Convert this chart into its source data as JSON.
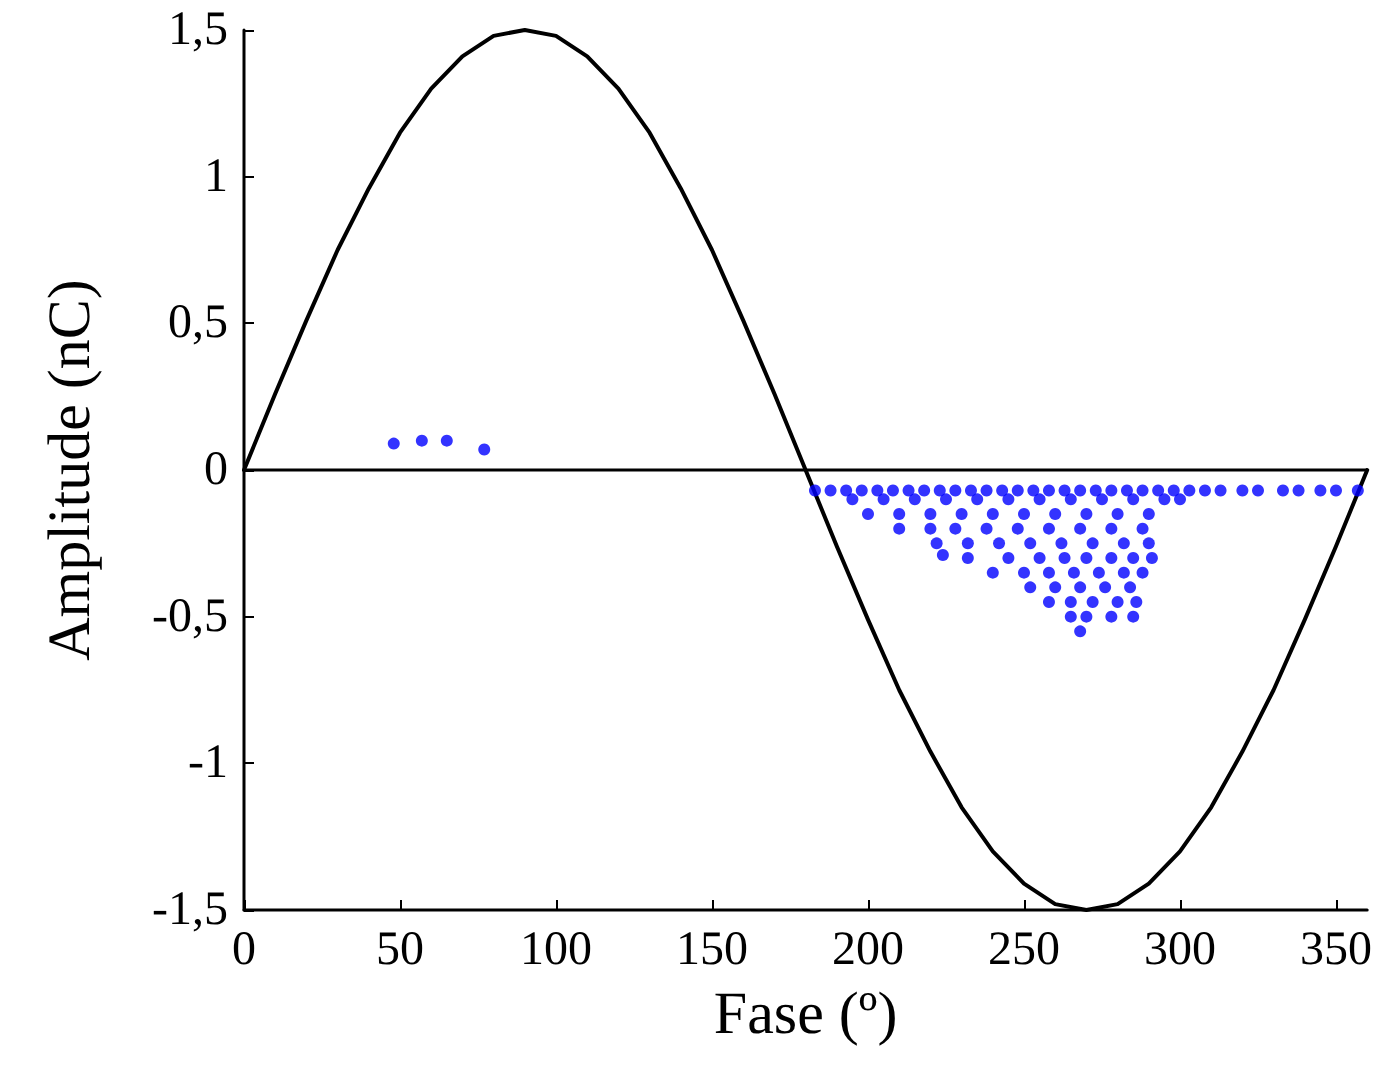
{
  "chart_data": {
    "type": "scatter",
    "xlabel": "Fase (º)",
    "ylabel": "Amplitude (nC)",
    "xlim": [
      0,
      360
    ],
    "xticks": [
      0,
      50,
      100,
      150,
      200,
      250,
      300,
      350
    ],
    "ylim": [
      -1.5,
      1.5
    ],
    "yticks": [
      {
        "value": -1.5,
        "label": "-1,5"
      },
      {
        "value": -1,
        "label": "-1"
      },
      {
        "value": -0.5,
        "label": "-0,5"
      },
      {
        "value": 0,
        "label": "0"
      },
      {
        "value": 0.5,
        "label": "0,5"
      },
      {
        "value": 1,
        "label": "1"
      },
      {
        "value": 1.5,
        "label": "1,5"
      }
    ],
    "grid": false,
    "marker": "circle",
    "ref_lines": [
      {
        "axis": "y",
        "value": 0,
        "color": "#000000"
      }
    ],
    "series": [
      {
        "type": "line",
        "color": "#000000",
        "marker": "none",
        "line_style": "solid",
        "x": [
          0,
          10,
          20,
          30,
          40,
          50,
          60,
          70,
          80,
          90,
          100,
          110,
          120,
          130,
          140,
          150,
          160,
          170,
          180,
          190,
          200,
          210,
          220,
          230,
          240,
          250,
          260,
          270,
          280,
          290,
          300,
          310,
          320,
          330,
          340,
          350,
          360
        ],
        "values": [
          0,
          0.26,
          0.51,
          0.75,
          0.96,
          1.15,
          1.3,
          1.41,
          1.48,
          1.5,
          1.48,
          1.41,
          1.3,
          1.15,
          0.96,
          0.75,
          0.51,
          0.26,
          0,
          -0.26,
          -0.51,
          -0.75,
          -0.96,
          -1.15,
          -1.3,
          -1.41,
          -1.48,
          -1.5,
          -1.48,
          -1.41,
          -1.3,
          -1.15,
          -0.96,
          -0.75,
          -0.51,
          -0.26,
          0
        ]
      },
      {
        "color": "#0000ff",
        "x": [
          48,
          57,
          65,
          77,
          183,
          188,
          193,
          198,
          203,
          208,
          213,
          218,
          223,
          228,
          233,
          238,
          243,
          248,
          253,
          258,
          263,
          268,
          273,
          278,
          283,
          288,
          293,
          298,
          303,
          308,
          313,
          320,
          325,
          333,
          338,
          345,
          350,
          357,
          195,
          205,
          215,
          225,
          235,
          245,
          255,
          265,
          275,
          285,
          295,
          300,
          200,
          210,
          220,
          230,
          240,
          250,
          260,
          270,
          280,
          290,
          210,
          220,
          228,
          238,
          248,
          258,
          268,
          278,
          288,
          222,
          232,
          242,
          252,
          262,
          272,
          282,
          290,
          224,
          232,
          245,
          255,
          263,
          270,
          278,
          285,
          291,
          240,
          250,
          258,
          266,
          274,
          282,
          288,
          252,
          260,
          268,
          276,
          284,
          258,
          265,
          272,
          280,
          286,
          265,
          270,
          278,
          285,
          268
        ],
        "values": [
          0.09,
          0.1,
          0.1,
          0.07,
          -0.07,
          -0.07,
          -0.07,
          -0.07,
          -0.07,
          -0.07,
          -0.07,
          -0.07,
          -0.07,
          -0.07,
          -0.07,
          -0.07,
          -0.07,
          -0.07,
          -0.07,
          -0.07,
          -0.07,
          -0.07,
          -0.07,
          -0.07,
          -0.07,
          -0.07,
          -0.07,
          -0.07,
          -0.07,
          -0.07,
          -0.07,
          -0.07,
          -0.07,
          -0.07,
          -0.07,
          -0.07,
          -0.07,
          -0.07,
          -0.1,
          -0.1,
          -0.1,
          -0.1,
          -0.1,
          -0.1,
          -0.1,
          -0.1,
          -0.1,
          -0.1,
          -0.1,
          -0.1,
          -0.15,
          -0.15,
          -0.15,
          -0.15,
          -0.15,
          -0.15,
          -0.15,
          -0.15,
          -0.15,
          -0.15,
          -0.2,
          -0.2,
          -0.2,
          -0.2,
          -0.2,
          -0.2,
          -0.2,
          -0.2,
          -0.2,
          -0.25,
          -0.25,
          -0.25,
          -0.25,
          -0.25,
          -0.25,
          -0.25,
          -0.25,
          -0.29,
          -0.3,
          -0.3,
          -0.3,
          -0.3,
          -0.3,
          -0.3,
          -0.3,
          -0.3,
          -0.35,
          -0.35,
          -0.35,
          -0.35,
          -0.35,
          -0.35,
          -0.35,
          -0.4,
          -0.4,
          -0.4,
          -0.4,
          -0.4,
          -0.45,
          -0.45,
          -0.45,
          -0.45,
          -0.45,
          -0.5,
          -0.5,
          -0.5,
          -0.5,
          -0.55
        ]
      }
    ]
  }
}
